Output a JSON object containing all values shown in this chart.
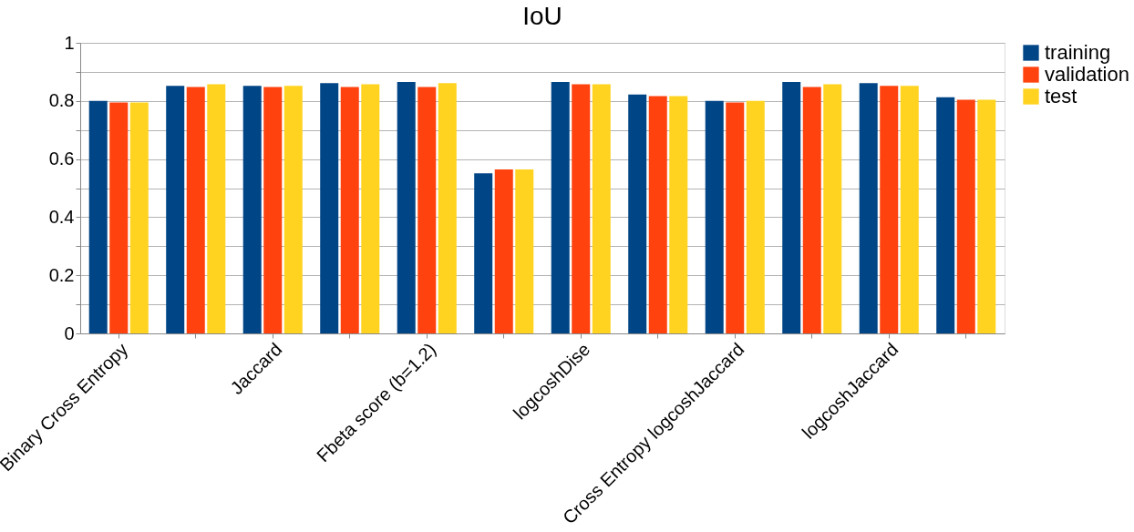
{
  "chart_data": {
    "type": "bar",
    "title": "IoU",
    "categories": [
      "Binary Cross Entropy",
      null,
      "Jaccard",
      null,
      "Fbeta score (b=1.2)",
      null,
      "logcoshDise",
      null,
      "Cross Entropy logcoshJaccard",
      null,
      "logcoshJaccard",
      null
    ],
    "series": [
      {
        "name": "training",
        "color": "#004586",
        "values": [
          0.8,
          0.852,
          0.852,
          0.861,
          0.865,
          0.551,
          0.865,
          0.822,
          0.8,
          0.865,
          0.861,
          0.813
        ]
      },
      {
        "name": "validation",
        "color": "#ff420e",
        "values": [
          0.795,
          0.848,
          0.848,
          0.848,
          0.848,
          0.564,
          0.857,
          0.817,
          0.795,
          0.848,
          0.852,
          0.804
        ]
      },
      {
        "name": "test",
        "color": "#ffd320",
        "values": [
          0.795,
          0.857,
          0.852,
          0.857,
          0.861,
          0.564,
          0.857,
          0.817,
          0.8,
          0.857,
          0.852,
          0.804
        ]
      }
    ],
    "ylim": [
      0,
      1
    ],
    "yticks": [
      0,
      {
        "value": 0.1,
        "label": null
      },
      0.2,
      {
        "value": 0.3,
        "label": null
      },
      0.4,
      {
        "value": 0.5,
        "label": null
      },
      0.6,
      {
        "value": 0.7,
        "label": null
      },
      0.8,
      {
        "value": 0.9,
        "label": null
      },
      1
    ],
    "grid": "y",
    "legend": "right"
  }
}
